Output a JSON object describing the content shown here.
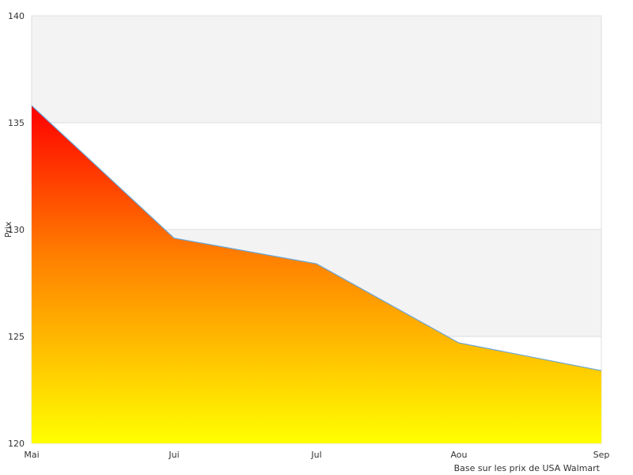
{
  "chart_data": {
    "type": "area",
    "title": "",
    "xlabel": "",
    "ylabel": "Prix",
    "categories": [
      "Mai",
      "Jui",
      "Jul",
      "Aou",
      "Sep"
    ],
    "series": [
      {
        "values": [
          135.8,
          129.6,
          128.4,
          124.7,
          123.4
        ]
      }
    ],
    "ylim": [
      120,
      140
    ],
    "yticks": [
      "120",
      "125",
      "130",
      "135",
      "140"
    ],
    "grid": "horizontal alternating bands",
    "legend": "none",
    "note": "Base sur les prix de USA Walmart",
    "colors": {
      "band": "#f3f3f3",
      "grid": "#dddddd",
      "line": "#6aa6d6",
      "fill_top": "#ff0000",
      "fill_mid": "#ff8000",
      "fill_bottom": "#ffff00"
    }
  }
}
